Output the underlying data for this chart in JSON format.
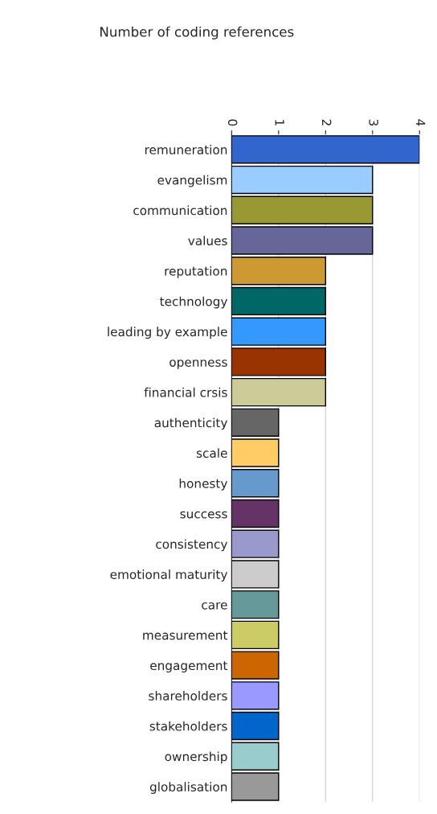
{
  "chart_data": {
    "type": "bar",
    "orientation": "horizontal",
    "title": "Number of coding references",
    "categories": [
      "remuneration",
      "evangelism",
      "communication",
      "values",
      "reputation",
      "technology",
      "leading by example",
      "openness",
      "financial crsis",
      "authenticity",
      "scale",
      "honesty",
      "success",
      "consistency",
      "emotional maturity",
      "care",
      "measurement",
      "engagement",
      "shareholders",
      "stakeholders",
      "ownership",
      "globalisation"
    ],
    "values": [
      4,
      3,
      3,
      3,
      2,
      2,
      2,
      2,
      2,
      1,
      1,
      1,
      1,
      1,
      1,
      1,
      1,
      1,
      1,
      1,
      1,
      1
    ],
    "colors": [
      "#3366cc",
      "#99ccff",
      "#999933",
      "#666699",
      "#cc9933",
      "#006666",
      "#3399ff",
      "#993300",
      "#cccc99",
      "#666666",
      "#ffcc66",
      "#6699cc",
      "#663366",
      "#9999cc",
      "#cccccc",
      "#669999",
      "#cccc66",
      "#cc6600",
      "#9999ff",
      "#0066cc",
      "#99cccc",
      "#999999"
    ],
    "xlim": [
      0,
      4
    ],
    "xticks": [
      0,
      1,
      2,
      3,
      4
    ],
    "grid": "x"
  }
}
